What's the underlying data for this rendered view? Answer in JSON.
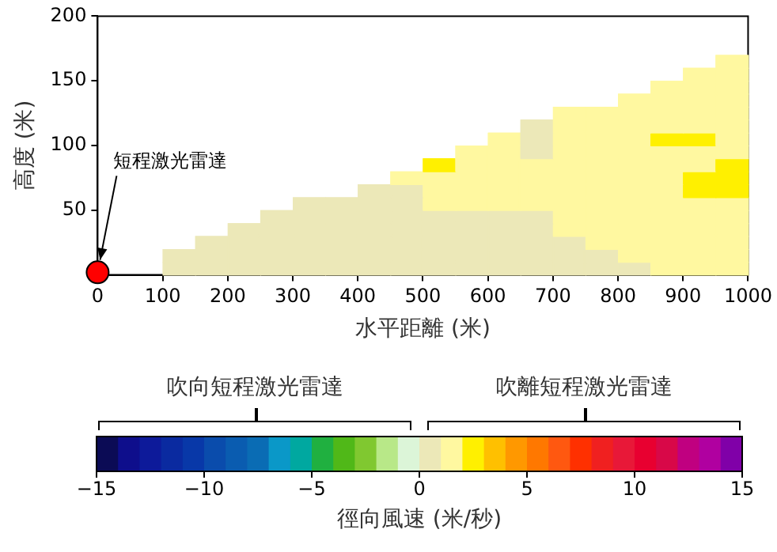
{
  "chart_data": {
    "type": "scatter",
    "xlabel": "水平距離 (米)",
    "ylabel": "高度 (米)",
    "clabel": "徑向風速 (米/秒)",
    "xlim": [
      0,
      1000
    ],
    "xticks": [
      0,
      100,
      200,
      300,
      400,
      500,
      600,
      700,
      800,
      900,
      1000
    ],
    "ylim": [
      0,
      200
    ],
    "yticks": [
      {
        "value": 0,
        "label": null
      },
      50,
      100,
      150,
      200
    ],
    "clim": [
      -15,
      15
    ],
    "cticks": [
      -15,
      -10,
      -5,
      0,
      5,
      10,
      15
    ],
    "colors": [
      "#0b0b55",
      "#0e0e8c",
      "#0d1a9a",
      "#0a2aa0",
      "#0838a8",
      "#0a4cac",
      "#0a5cb0",
      "#0a6cb4",
      "#0a98c8",
      "#00a8a0",
      "#20b040",
      "#50b818",
      "#80c830",
      "#b8e888",
      "#dcf5d8",
      "#ece8b8",
      "#fff8a0",
      "#fff000",
      "#ffc000",
      "#ff9800",
      "#ff7800",
      "#ff5810",
      "#ff3000",
      "#f02020",
      "#e81838",
      "#e80030",
      "#d80848",
      "#c00080",
      "#b000a0",
      "#8000a8"
    ],
    "grid": false,
    "legend": false,
    "annotations": [
      {
        "text": "短程激光雷達",
        "x": 0,
        "y": 2
      },
      "吹向短程激光雷達",
      "吹離短程激光雷達"
    ],
    "series": [
      {
        "marker": "square",
        "x": [
          125,
          175,
          225,
          275,
          325,
          375,
          425,
          475,
          525,
          575,
          625,
          675,
          725,
          775,
          825,
          875,
          925,
          975
        ],
        "values": [
          5,
          5,
          5,
          5,
          5,
          5,
          5,
          5,
          5,
          5,
          5,
          5,
          5,
          5,
          5,
          5,
          5,
          5
        ],
        "cvalues": [
          0.5,
          0.5,
          0.5,
          0.5,
          0.5,
          0.5,
          0.5,
          0.5,
          0.5,
          0.5,
          0.5,
          0.5,
          0.5,
          0.5,
          0.5,
          1.5,
          1.5,
          1.5
        ],
        "colors": [
          "#ece8b8",
          "#ece8b8",
          "#ece8b8",
          "#ece8b8",
          "#ece8b8",
          "#ece8b8",
          "#ece8b8",
          "#ece8b8",
          "#ece8b8",
          "#ece8b8",
          "#ece8b8",
          "#ece8b8",
          "#ece8b8",
          "#ece8b8",
          "#ece8b8",
          "#fff8a0",
          "#fff8a0",
          "#fff8a0"
        ]
      },
      {
        "marker": "square",
        "x": [
          125,
          175,
          225,
          275,
          325,
          375,
          425,
          475,
          525,
          575,
          625,
          675,
          725,
          775,
          825,
          875,
          925,
          975
        ],
        "values": [
          15,
          15,
          15,
          15,
          15,
          15,
          15,
          15,
          15,
          15,
          15,
          15,
          15,
          15,
          15,
          15,
          15,
          15
        ],
        "cvalues": [
          0.5,
          0.5,
          0.5,
          0.5,
          0.5,
          0.5,
          0.5,
          0.5,
          0.5,
          0.5,
          0.5,
          0.5,
          0.5,
          0.5,
          1.5,
          1.5,
          1.5,
          1.5
        ],
        "colors": [
          "#ece8b8",
          "#ece8b8",
          "#ece8b8",
          "#ece8b8",
          "#ece8b8",
          "#ece8b8",
          "#ece8b8",
          "#ece8b8",
          "#ece8b8",
          "#ece8b8",
          "#ece8b8",
          "#ece8b8",
          "#ece8b8",
          "#ece8b8",
          "#fff8a0",
          "#fff8a0",
          "#fff8a0",
          "#fff8a0"
        ]
      },
      {
        "marker": "square",
        "x": [
          175,
          225,
          275,
          325,
          375,
          425,
          475,
          525,
          575,
          625,
          675,
          725,
          775,
          825,
          875,
          925,
          975
        ],
        "values": [
          25,
          25,
          25,
          25,
          25,
          25,
          25,
          25,
          25,
          25,
          25,
          25,
          25,
          25,
          25,
          25,
          25
        ],
        "cvalues": [
          0.5,
          0.5,
          0.5,
          0.5,
          0.5,
          0.5,
          0.5,
          0.5,
          0.5,
          0.5,
          0.5,
          0.5,
          1.5,
          1.5,
          1.5,
          1.5,
          1.5
        ],
        "colors": [
          "#ece8b8",
          "#ece8b8",
          "#ece8b8",
          "#ece8b8",
          "#ece8b8",
          "#ece8b8",
          "#ece8b8",
          "#ece8b8",
          "#ece8b8",
          "#ece8b8",
          "#ece8b8",
          "#ece8b8",
          "#fff8a0",
          "#fff8a0",
          "#fff8a0",
          "#fff8a0",
          "#fff8a0"
        ]
      },
      {
        "marker": "square",
        "x": [
          225,
          275,
          325,
          375,
          425,
          475,
          525,
          575,
          625,
          675,
          725,
          775,
          825,
          875,
          925,
          975
        ],
        "values": [
          35,
          35,
          35,
          35,
          35,
          35,
          35,
          35,
          35,
          35,
          35,
          35,
          35,
          35,
          35,
          35
        ],
        "cvalues": [
          0.5,
          0.5,
          0.5,
          0.5,
          0.5,
          0.5,
          0.5,
          0.5,
          0.5,
          0.5,
          1.5,
          1.5,
          1.5,
          1.5,
          1.5,
          1.5
        ],
        "colors": [
          "#ece8b8",
          "#ece8b8",
          "#ece8b8",
          "#ece8b8",
          "#ece8b8",
          "#ece8b8",
          "#ece8b8",
          "#ece8b8",
          "#ece8b8",
          "#ece8b8",
          "#fff8a0",
          "#fff8a0",
          "#fff8a0",
          "#fff8a0",
          "#fff8a0",
          "#fff8a0"
        ]
      },
      {
        "marker": "square",
        "x": [
          275,
          325,
          375,
          425,
          475,
          525,
          575,
          625,
          675,
          725,
          775,
          825,
          875,
          925,
          975
        ],
        "values": [
          45,
          45,
          45,
          45,
          45,
          45,
          45,
          45,
          45,
          45,
          45,
          45,
          45,
          45,
          45
        ],
        "cvalues": [
          0.5,
          0.5,
          0.5,
          0.5,
          0.5,
          0.5,
          0.5,
          0.5,
          0.5,
          1.5,
          1.5,
          1.5,
          1.5,
          1.5,
          1.5
        ],
        "colors": [
          "#ece8b8",
          "#ece8b8",
          "#ece8b8",
          "#ece8b8",
          "#ece8b8",
          "#ece8b8",
          "#ece8b8",
          "#ece8b8",
          "#ece8b8",
          "#fff8a0",
          "#fff8a0",
          "#fff8a0",
          "#fff8a0",
          "#fff8a0",
          "#fff8a0"
        ]
      },
      {
        "marker": "square",
        "x": [
          325,
          375,
          425,
          475,
          525,
          575,
          625,
          675,
          725,
          775,
          825,
          875,
          925,
          975
        ],
        "values": [
          55,
          55,
          55,
          55,
          55,
          55,
          55,
          55,
          55,
          55,
          55,
          55,
          55,
          55
        ],
        "cvalues": [
          0.5,
          0.5,
          0.5,
          0.5,
          1.5,
          1.5,
          1.5,
          1.5,
          1.5,
          1.5,
          1.5,
          1.5,
          1.5,
          1.5
        ],
        "colors": [
          "#ece8b8",
          "#ece8b8",
          "#ece8b8",
          "#ece8b8",
          "#fff8a0",
          "#fff8a0",
          "#fff8a0",
          "#fff8a0",
          "#fff8a0",
          "#fff8a0",
          "#fff8a0",
          "#fff8a0",
          "#fff8a0",
          "#fff8a0"
        ]
      },
      {
        "marker": "square",
        "x": [
          425,
          475,
          525,
          575,
          625,
          675,
          725,
          775,
          825,
          875,
          925,
          975
        ],
        "values": [
          65,
          65,
          65,
          65,
          65,
          65,
          65,
          65,
          65,
          65,
          65,
          65
        ],
        "cvalues": [
          0.5,
          0.5,
          1.5,
          1.5,
          1.5,
          1.5,
          1.5,
          1.5,
          1.5,
          1.5,
          2.5,
          2.5
        ],
        "colors": [
          "#ece8b8",
          "#ece8b8",
          "#fff8a0",
          "#fff8a0",
          "#fff8a0",
          "#fff8a0",
          "#fff8a0",
          "#fff8a0",
          "#fff8a0",
          "#fff8a0",
          "#fff000",
          "#fff000"
        ]
      },
      {
        "marker": "square",
        "x": [
          475,
          525,
          575,
          625,
          675,
          725,
          775,
          825,
          875,
          925,
          975
        ],
        "values": [
          75,
          75,
          75,
          75,
          75,
          75,
          75,
          75,
          75,
          75,
          75
        ],
        "cvalues": [
          1.5,
          1.5,
          1.5,
          1.5,
          1.5,
          1.5,
          1.5,
          1.5,
          1.5,
          2.5,
          2.5
        ],
        "colors": [
          "#fff8a0",
          "#fff8a0",
          "#fff8a0",
          "#fff8a0",
          "#fff8a0",
          "#fff8a0",
          "#fff8a0",
          "#fff8a0",
          "#fff8a0",
          "#fff000",
          "#fff000"
        ]
      },
      {
        "marker": "square",
        "x": [
          525,
          575,
          625,
          675,
          725,
          775,
          825,
          875,
          925,
          975
        ],
        "values": [
          85,
          85,
          85,
          85,
          85,
          85,
          85,
          85,
          85,
          85
        ],
        "cvalues": [
          2.5,
          1.5,
          1.5,
          1.5,
          1.5,
          1.5,
          1.5,
          1.5,
          1.5,
          2.5
        ],
        "colors": [
          "#fff000",
          "#fff8a0",
          "#fff8a0",
          "#fff8a0",
          "#fff8a0",
          "#fff8a0",
          "#fff8a0",
          "#fff8a0",
          "#fff8a0",
          "#fff000"
        ]
      },
      {
        "marker": "square",
        "x": [
          575,
          625,
          675,
          725,
          775,
          825,
          875,
          925,
          975
        ],
        "values": [
          95,
          95,
          95,
          95,
          95,
          95,
          95,
          95,
          95
        ],
        "cvalues": [
          1.5,
          1.5,
          0.5,
          1.5,
          1.5,
          1.5,
          1.5,
          1.5,
          1.5
        ],
        "colors": [
          "#fff8a0",
          "#fff8a0",
          "#ece8b8",
          "#fff8a0",
          "#fff8a0",
          "#fff8a0",
          "#fff8a0",
          "#fff8a0",
          "#fff8a0"
        ]
      },
      {
        "marker": "square",
        "x": [
          625,
          675,
          725,
          775,
          825,
          875,
          925,
          975
        ],
        "values": [
          105,
          105,
          105,
          105,
          105,
          105,
          105,
          105
        ],
        "cvalues": [
          1.5,
          0.5,
          1.5,
          1.5,
          1.5,
          2.5,
          2.5,
          1.5
        ],
        "colors": [
          "#fff8a0",
          "#ece8b8",
          "#fff8a0",
          "#fff8a0",
          "#fff8a0",
          "#fff000",
          "#fff000",
          "#fff8a0"
        ]
      },
      {
        "marker": "square",
        "x": [
          675,
          725,
          775,
          825,
          875,
          925,
          975
        ],
        "values": [
          115,
          115,
          115,
          115,
          115,
          115,
          115
        ],
        "cvalues": [
          0.5,
          1.5,
          1.5,
          1.5,
          1.5,
          1.5,
          1.5
        ],
        "colors": [
          "#ece8b8",
          "#fff8a0",
          "#fff8a0",
          "#fff8a0",
          "#fff8a0",
          "#fff8a0",
          "#fff8a0"
        ]
      },
      {
        "marker": "square",
        "x": [
          725,
          775,
          825,
          875,
          925,
          975
        ],
        "values": [
          125,
          125,
          125,
          125,
          125,
          125
        ],
        "cvalues": [
          1.5,
          1.5,
          1.5,
          1.5,
          1.5,
          1.5
        ],
        "color": "#fff8a0"
      },
      {
        "marker": "square",
        "x": [
          825,
          875,
          925,
          975
        ],
        "values": [
          135,
          135,
          135,
          135
        ],
        "cvalues": [
          1.5,
          1.5,
          1.5,
          1.5
        ],
        "color": "#fff8a0"
      },
      {
        "marker": "square",
        "x": [
          875,
          925,
          975
        ],
        "values": [
          145,
          145,
          145
        ],
        "cvalues": [
          1.5,
          1.5,
          1.5
        ],
        "color": "#fff8a0"
      },
      {
        "marker": "square",
        "x": [
          925,
          975
        ],
        "values": [
          155,
          155
        ],
        "cvalues": [
          1.5,
          1.5
        ],
        "color": "#fff8a0"
      },
      {
        "marker": "square",
        "x": [
          975
        ],
        "values": [
          165
        ],
        "cvalues": [
          1.5
        ],
        "color": "#fff8a0"
      },
      {
        "marker": "circle",
        "color": "#ff0000",
        "x": [
          0
        ],
        "values": [
          2
        ]
      }
    ]
  }
}
